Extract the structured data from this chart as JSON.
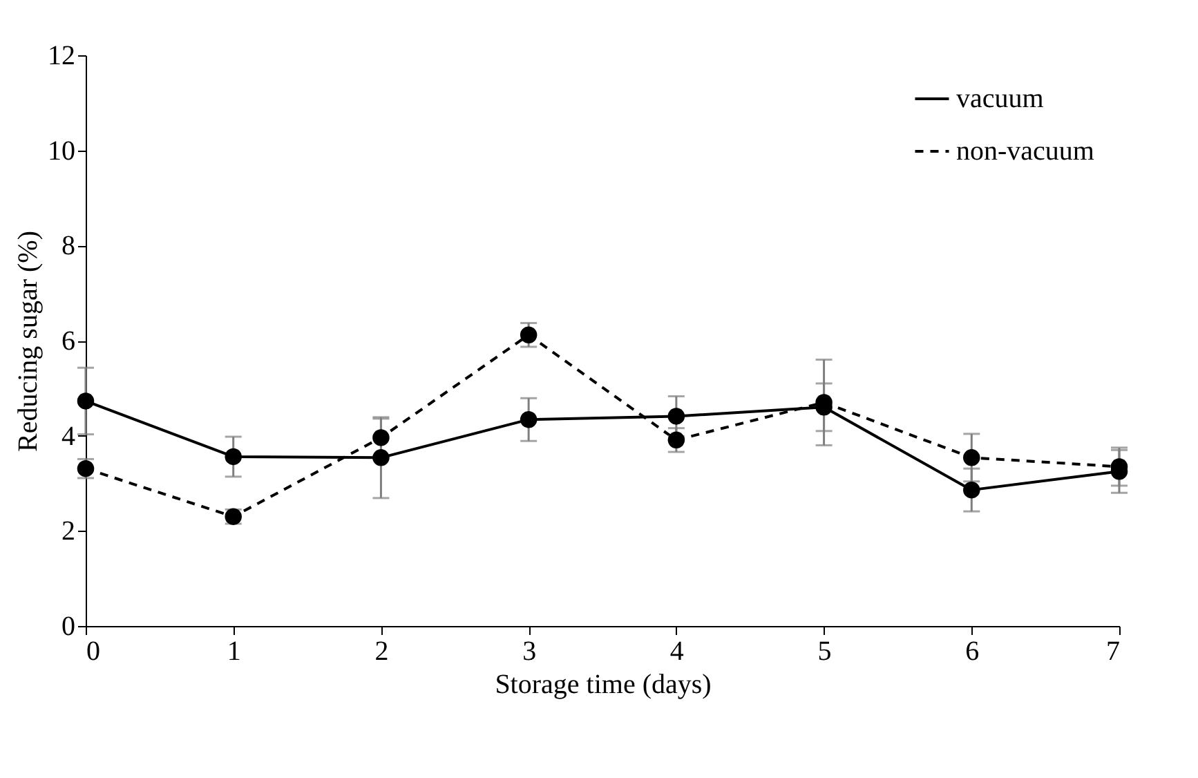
{
  "chart_data": {
    "type": "line",
    "xlabel": "Storage time (days)",
    "ylabel": "Reducing sugar (%)",
    "x": [
      0,
      1,
      2,
      3,
      4,
      5,
      6,
      7
    ],
    "series": [
      {
        "name": "vacuum",
        "color": "#000000",
        "line_style": "solid",
        "values": [
          4.73,
          3.56,
          3.54,
          4.34,
          4.41,
          4.6,
          2.86,
          3.25
        ],
        "errors": [
          0.7,
          0.42,
          0.85,
          0.45,
          0.42,
          0.5,
          0.45,
          0.45
        ]
      },
      {
        "name": "non-vacuum",
        "color": "#000000",
        "line_style": "dashed",
        "values": [
          3.31,
          2.3,
          3.96,
          6.12,
          3.91,
          4.7,
          3.54,
          3.35
        ],
        "errors": [
          0.2,
          0.15,
          0.4,
          0.25,
          0.25,
          0.9,
          0.5,
          0.4
        ]
      }
    ],
    "xlim": [
      0,
      7
    ],
    "xticks": [
      0,
      1,
      2,
      3,
      4,
      5,
      6,
      7
    ],
    "ylim": [
      0,
      12
    ],
    "yticks": [
      0,
      2,
      4,
      6,
      8,
      10,
      12
    ],
    "marker": "circle",
    "grid": false,
    "legend": "top right"
  }
}
